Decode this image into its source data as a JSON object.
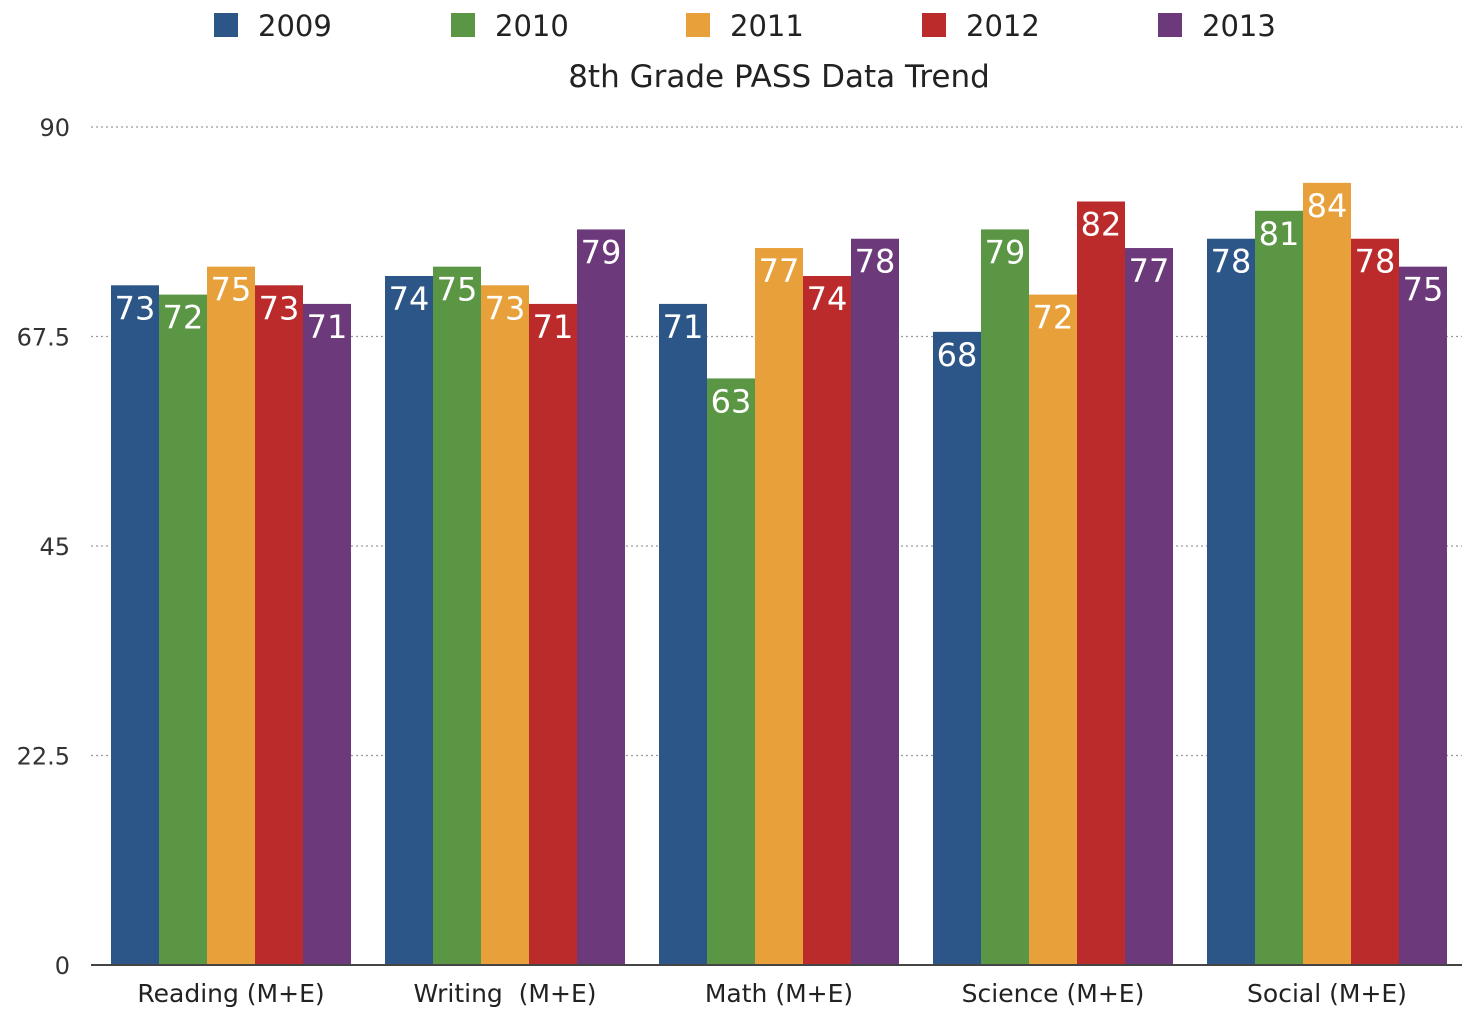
{
  "chart_data": {
    "type": "bar",
    "title": "8th Grade PASS Data Trend",
    "xlabel": "",
    "ylabel": "",
    "ylim": [
      0,
      90
    ],
    "yticks": [
      "0",
      "22.5",
      "45",
      "67.5",
      "90"
    ],
    "yticks_values": [
      0,
      22.5,
      45,
      67.5,
      90
    ],
    "grid": true,
    "legend_position": "top",
    "categories": [
      "Reading (M+E)",
      "Writing  (M+E)",
      "Math (M+E)",
      "Science (M+E)",
      "Social (M+E)"
    ],
    "series": [
      {
        "name": "2009",
        "color": "#2d5688",
        "values": [
          73,
          74,
          71,
          68,
          78
        ]
      },
      {
        "name": "2010",
        "color": "#5a9643",
        "values": [
          72,
          75,
          63,
          79,
          81
        ]
      },
      {
        "name": "2011",
        "color": "#e8a03a",
        "values": [
          75,
          73,
          77,
          72,
          84
        ]
      },
      {
        "name": "2012",
        "color": "#bc2b2c",
        "values": [
          73,
          71,
          74,
          82,
          78
        ]
      },
      {
        "name": "2013",
        "color": "#6c3a7a",
        "values": [
          71,
          79,
          78,
          77,
          75
        ]
      }
    ]
  }
}
